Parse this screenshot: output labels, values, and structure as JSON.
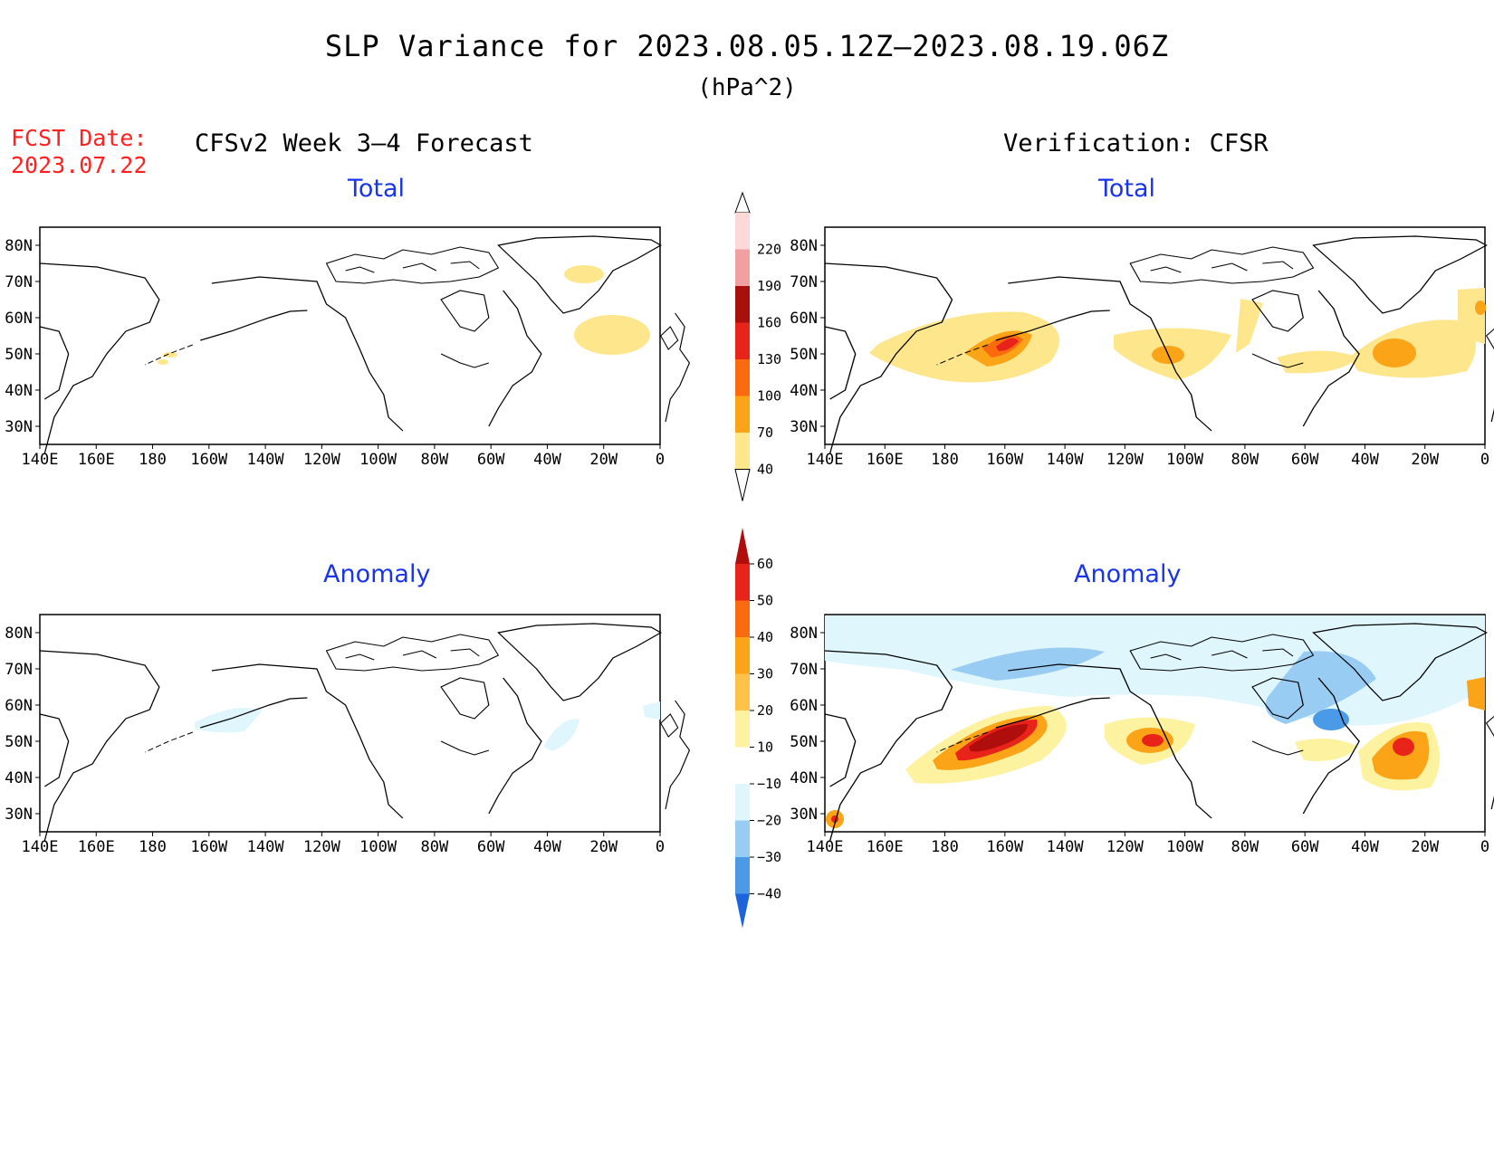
{
  "title": "SLP Variance for 2023.08.05.12Z–2023.08.19.06Z",
  "units": "(hPa^2)",
  "fcst_date": {
    "label": "FCST Date:",
    "value": "2023.07.22"
  },
  "forecast_heading": "CFSv2 Week 3–4 Forecast",
  "verification_heading": "Verification: CFSR",
  "panels": {
    "forecast_total": {
      "subtitle": "Total"
    },
    "verification_total": {
      "subtitle": "Total"
    },
    "forecast_anomaly": {
      "subtitle": "Anomaly"
    },
    "verification_anomaly": {
      "subtitle": "Anomaly"
    }
  },
  "axis": {
    "lon_labels": [
      "140E",
      "160E",
      "180",
      "160W",
      "140W",
      "120W",
      "100W",
      "80W",
      "60W",
      "40W",
      "20W",
      "0"
    ],
    "lat_labels": [
      "80N",
      "70N",
      "60N",
      "50N",
      "40N",
      "30N"
    ]
  },
  "total_colorbar": {
    "levels": [
      "40",
      "70",
      "100",
      "130",
      "160",
      "190",
      "220"
    ],
    "colors": [
      "#fde68c",
      "#fba418",
      "#fa6a0e",
      "#e8231a",
      "#a8100e",
      "#f0a0a0",
      "#fcd8d8"
    ]
  },
  "anomaly_colorbar": {
    "levels": [
      "60",
      "50",
      "40",
      "30",
      "20",
      "10",
      "−10",
      "−20",
      "−30",
      "−40"
    ],
    "colors": [
      "#b00d0d",
      "#e8231a",
      "#fa6a0e",
      "#fba418",
      "#fcc24a",
      "#fdf2a0",
      "#ffffff",
      "#dff6fd",
      "#98ccf3",
      "#4a9ae8",
      "#1d64dc"
    ]
  },
  "map_features": {
    "coastline": "black",
    "region": "North Pacific, North America, North Atlantic (140E–0, 25N–85N)"
  }
}
